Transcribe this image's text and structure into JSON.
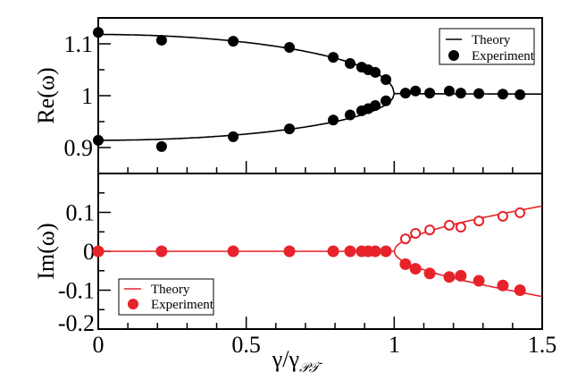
{
  "chart_data": [
    {
      "type": "line",
      "panel": "top",
      "ylabel": "Re(ω)",
      "xlim": [
        0,
        1.5
      ],
      "ylim": [
        0.85,
        1.15
      ],
      "yticks": [
        0.9,
        1,
        1.1
      ],
      "ytick_labels": [
        "0.9",
        "1",
        "1.1"
      ],
      "color": "#000000",
      "legend": {
        "placement": "top-right",
        "entries": [
          "Theory",
          "Experiment"
        ]
      },
      "experiment_upper": {
        "x": [
          0,
          0.214,
          0.456,
          0.646,
          0.794,
          0.851,
          0.89,
          0.912,
          0.936,
          0.972
        ],
        "y": [
          1.122,
          1.107,
          1.105,
          1.093,
          1.074,
          1.062,
          1.055,
          1.05,
          1.045,
          1.031
        ]
      },
      "experiment_lower": {
        "x": [
          0,
          0.214,
          0.456,
          0.646,
          0.794,
          0.851,
          0.89,
          0.912,
          0.936,
          0.972
        ],
        "y": [
          0.914,
          0.902,
          0.921,
          0.936,
          0.953,
          0.963,
          0.971,
          0.975,
          0.981,
          0.99
        ]
      },
      "experiment_after": {
        "x": [
          1.038,
          1.072,
          1.12,
          1.186,
          1.225,
          1.286,
          1.367,
          1.425
        ],
        "y": [
          1.005,
          1.009,
          1.005,
          1.009,
          1.005,
          1.004,
          1.003,
          1.002
        ]
      }
    },
    {
      "type": "line",
      "panel": "bottom",
      "xlabel": "γ/γ",
      "xlabel_sub": "𝒫𝒯",
      "ylabel": "Im(ω)",
      "xlim": [
        0,
        1.5
      ],
      "ylim": [
        -0.2,
        0.2
      ],
      "xticks": [
        0,
        0.5,
        1,
        1.5
      ],
      "xtick_labels": [
        "0",
        "0.5",
        "1",
        "1.5"
      ],
      "yticks": [
        -0.2,
        -0.1,
        0,
        0.1
      ],
      "ytick_labels": [
        "-0.2",
        "-0.1",
        "0",
        "0.1"
      ],
      "color": "#e8222a",
      "legend": {
        "placement": "bottom-left",
        "entries": [
          "Theory",
          "Experiment"
        ]
      },
      "experiment_zero": {
        "x": [
          0,
          0.214,
          0.456,
          0.646,
          0.794,
          0.851,
          0.89,
          0.912,
          0.936,
          0.972
        ],
        "y": [
          0,
          0,
          0,
          0,
          0,
          0,
          0,
          0,
          0,
          0
        ]
      },
      "experiment_upper_open": {
        "x": [
          1.038,
          1.072,
          1.12,
          1.186,
          1.225,
          1.286,
          1.367,
          1.425
        ],
        "y": [
          0.032,
          0.046,
          0.055,
          0.067,
          0.062,
          0.078,
          0.09,
          0.099
        ]
      },
      "experiment_lower": {
        "x": [
          1.038,
          1.072,
          1.12,
          1.186,
          1.225,
          1.286,
          1.367,
          1.425
        ],
        "y": [
          -0.033,
          -0.045,
          -0.057,
          -0.066,
          -0.063,
          -0.076,
          -0.088,
          -0.1
        ]
      }
    }
  ]
}
